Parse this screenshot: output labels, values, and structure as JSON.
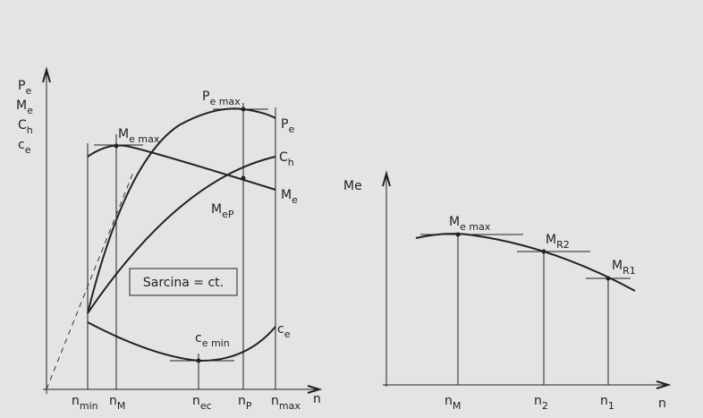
{
  "left": {
    "y_axis_labels": [
      {
        "base": "P",
        "sub": "e"
      },
      {
        "base": "M",
        "sub": "e"
      },
      {
        "base": "C",
        "sub": "h"
      },
      {
        "base": "c",
        "sub": "e"
      }
    ],
    "x_axis_labels": [
      {
        "base": "n",
        "sub": "min"
      },
      {
        "base": "n",
        "sub": "M"
      },
      {
        "base": "n",
        "sub": "ec"
      },
      {
        "base": "n",
        "sub": "P"
      },
      {
        "base": "n",
        "sub": "max"
      },
      {
        "base": "n",
        "sub": ""
      }
    ],
    "curve_labels": [
      {
        "base": "P",
        "sub": "e max"
      },
      {
        "base": "P",
        "sub": "e"
      },
      {
        "base": "M",
        "sub": "e max"
      },
      {
        "base": "M",
        "sub": "e"
      },
      {
        "base": "C",
        "sub": "h"
      },
      {
        "base": "M",
        "sub": "eP"
      },
      {
        "base": "c",
        "sub": "e min"
      },
      {
        "base": "c",
        "sub": "e"
      }
    ],
    "note": "Sarcina = ct."
  },
  "right": {
    "y_axis_labels": [
      {
        "base": "Me",
        "sub": ""
      }
    ],
    "x_axis_labels": [
      {
        "base": "n",
        "sub": "M"
      },
      {
        "base": "n",
        "sub": "2"
      },
      {
        "base": "n",
        "sub": "1"
      },
      {
        "base": "n",
        "sub": ""
      }
    ],
    "curve_labels": [
      {
        "base": "M",
        "sub": "e max"
      },
      {
        "base": "M",
        "sub": "R2"
      },
      {
        "base": "M",
        "sub": "R1"
      }
    ]
  }
}
